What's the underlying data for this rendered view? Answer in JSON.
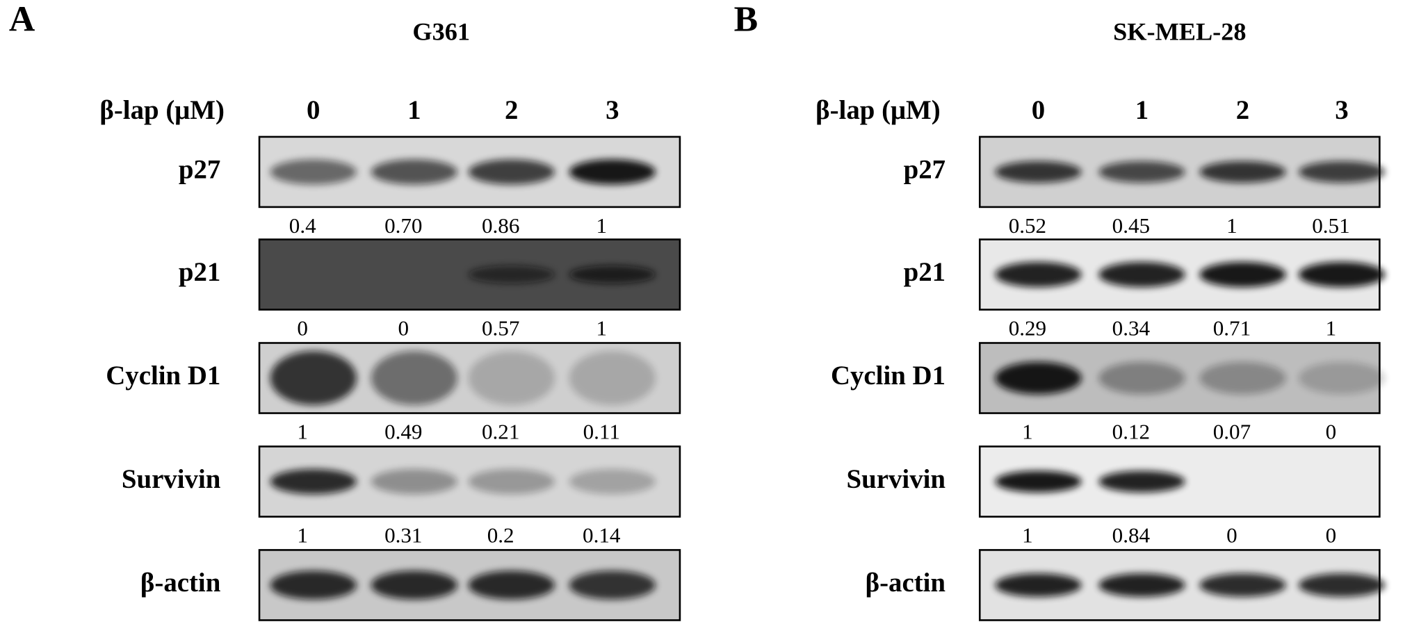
{
  "panels": [
    {
      "label": "A",
      "title": "G361",
      "treatment": "β-lap (μM)",
      "lanes": [
        "0",
        "1",
        "2",
        "3"
      ],
      "rows": [
        {
          "protein": "p27",
          "values": [
            "0.4",
            "0.70",
            "0.86",
            "1"
          ]
        },
        {
          "protein": "p21",
          "values": [
            "0",
            "0",
            "0.57",
            "1"
          ]
        },
        {
          "protein": "Cyclin D1",
          "values": [
            "1",
            "0.49",
            "0.21",
            "0.11"
          ]
        },
        {
          "protein": "Survivin",
          "values": [
            "1",
            "0.31",
            "0.2",
            "0.14"
          ]
        },
        {
          "protein": "β-actin"
        }
      ]
    },
    {
      "label": "B",
      "title": "SK-MEL-28",
      "treatment": "β-lap (μM)",
      "lanes": [
        "0",
        "1",
        "2",
        "3"
      ],
      "rows": [
        {
          "protein": "p27",
          "values": [
            "0.52",
            "0.45",
            "1",
            "0.51"
          ]
        },
        {
          "protein": "p21",
          "values": [
            "0.29",
            "0.34",
            "0.71",
            "1"
          ]
        },
        {
          "protein": "Cyclin D1",
          "values": [
            "1",
            "0.12",
            "0.07",
            "0"
          ]
        },
        {
          "protein": "Survivin",
          "values": [
            "1",
            "0.84",
            "0",
            "0"
          ]
        },
        {
          "protein": "β-actin"
        }
      ]
    }
  ]
}
